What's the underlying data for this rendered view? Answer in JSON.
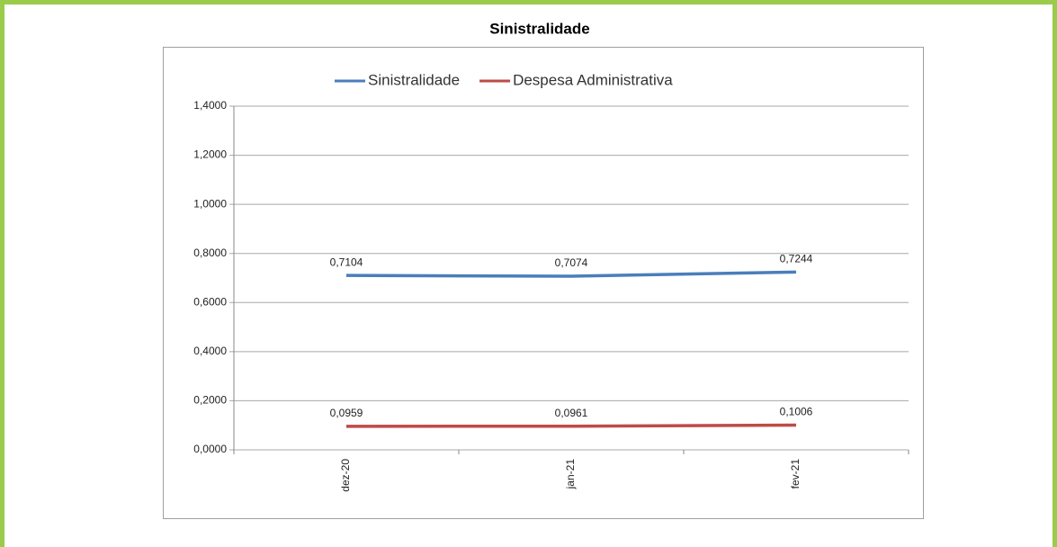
{
  "chart_data": {
    "type": "line",
    "title": "Sinistralidade",
    "categories": [
      "dez-20",
      "jan-21",
      "fev-21"
    ],
    "series": [
      {
        "name": "Sinistralidade",
        "color": "#4a7ebb",
        "values": [
          0.7104,
          0.7074,
          0.7244
        ],
        "value_labels": [
          "0,7104",
          "0,7074",
          "0,7244"
        ]
      },
      {
        "name": "Despesa Administrativa",
        "color": "#be4b48",
        "values": [
          0.0959,
          0.0961,
          0.1006
        ],
        "value_labels": [
          "0,0959",
          "0,0961",
          "0,1006"
        ]
      }
    ],
    "ylim": [
      0,
      1.4
    ],
    "yticks": [
      {
        "value": 0,
        "label": "0,0000"
      },
      {
        "value": 0.2,
        "label": "0,2000"
      },
      {
        "value": 0.4,
        "label": "0,4000"
      },
      {
        "value": 0.6,
        "label": "0,6000"
      },
      {
        "value": 0.8,
        "label": "0,8000"
      },
      {
        "value": 1.0,
        "label": "1,0000"
      },
      {
        "value": 1.2,
        "label": "1,2000"
      },
      {
        "value": 1.4,
        "label": "1,4000"
      }
    ],
    "grid": true,
    "legend": "top"
  }
}
